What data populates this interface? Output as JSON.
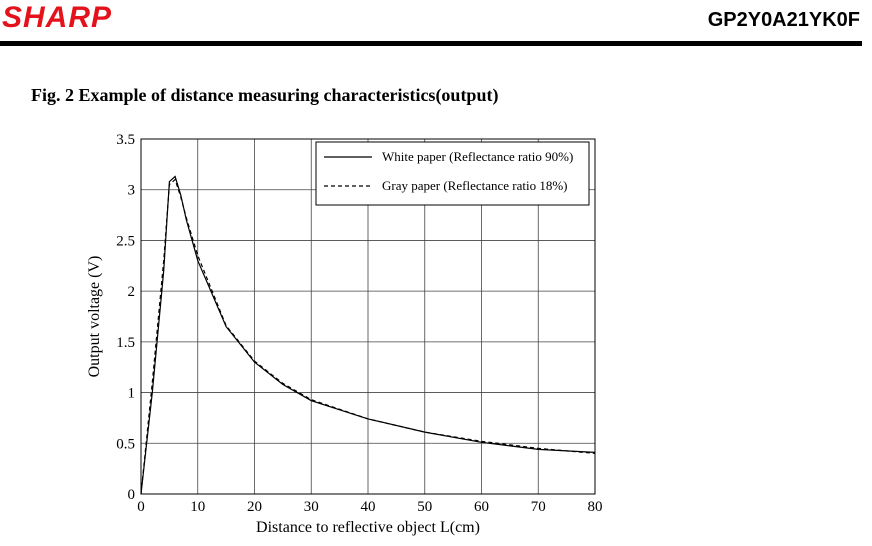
{
  "header": {
    "brand": "SHARP",
    "model": "GP2Y0A21YK0F"
  },
  "figure": {
    "title": "Fig. 2 Example of distance measuring characteristics(output)"
  },
  "chart_data": {
    "type": "line",
    "xlabel": "Distance to reflective object L(cm)",
    "ylabel": "Output voltage (V)",
    "xlim": [
      0,
      80
    ],
    "ylim": [
      0,
      3.5
    ],
    "x_ticks": [
      "0",
      "10",
      "20",
      "30",
      "40",
      "50",
      "60",
      "70",
      "80"
    ],
    "y_ticks": [
      "0",
      "0.5",
      "1",
      "1.5",
      "2",
      "2.5",
      "3",
      "3.5"
    ],
    "grid": true,
    "legend": "top-right",
    "series": [
      {
        "name": "White paper (Reflectance ratio 90%)",
        "style": "solid",
        "color": "#000000",
        "points": [
          [
            0,
            0
          ],
          [
            2,
            1.0
          ],
          [
            4,
            2.2
          ],
          [
            5,
            3.08
          ],
          [
            6,
            3.13
          ],
          [
            7,
            2.95
          ],
          [
            8,
            2.7
          ],
          [
            10,
            2.3
          ],
          [
            15,
            1.65
          ],
          [
            20,
            1.3
          ],
          [
            25,
            1.08
          ],
          [
            30,
            0.92
          ],
          [
            40,
            0.74
          ],
          [
            50,
            0.61
          ],
          [
            60,
            0.51
          ],
          [
            70,
            0.44
          ],
          [
            80,
            0.41
          ]
        ]
      },
      {
        "name": "Gray paper (Reflectance ratio 18%)",
        "style": "dashed",
        "color": "#000000",
        "points": [
          [
            0,
            0
          ],
          [
            2,
            1.1
          ],
          [
            4,
            2.3
          ],
          [
            5,
            3.05
          ],
          [
            6,
            3.1
          ],
          [
            7,
            2.93
          ],
          [
            8,
            2.72
          ],
          [
            10,
            2.35
          ],
          [
            15,
            1.66
          ],
          [
            20,
            1.31
          ],
          [
            25,
            1.09
          ],
          [
            30,
            0.93
          ],
          [
            40,
            0.74
          ],
          [
            50,
            0.61
          ],
          [
            60,
            0.52
          ],
          [
            70,
            0.45
          ],
          [
            80,
            0.4
          ]
        ]
      }
    ]
  }
}
